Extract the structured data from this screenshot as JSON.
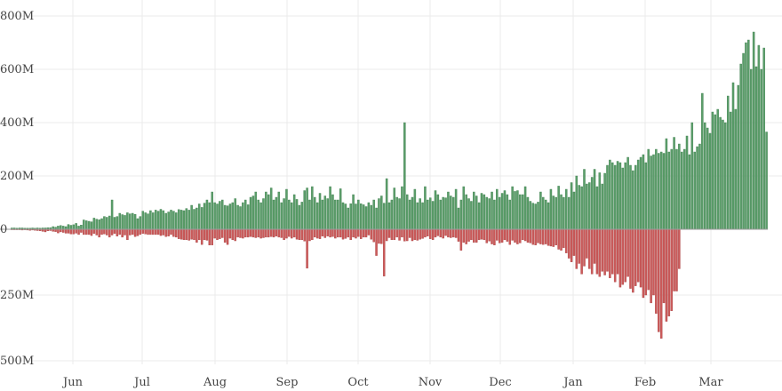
{
  "chart_data": {
    "type": "bar",
    "title": "",
    "xlabel": "",
    "ylabel": "",
    "grid": true,
    "legend": "none",
    "x_tick_labels": [
      "Jun",
      "Jul",
      "Aug",
      "Sep",
      "Oct",
      "Nov",
      "Dec",
      "Jan",
      "Feb",
      "Mar"
    ],
    "y_upper_tick_labels": [
      "0",
      "200M",
      "400M",
      "600M",
      "800M"
    ],
    "y_lower_tick_labels": [
      "250M",
      "500M"
    ],
    "upper_axis": {
      "min": 0,
      "max": 800,
      "unit": "M"
    },
    "lower_axis": {
      "min": 0,
      "max": 500,
      "unit": "M"
    },
    "colors": {
      "upper": "#5b9e6a",
      "lower": "#cc5a5a",
      "upper_edge": "#3f7f4f",
      "lower_edge": "#a94444"
    },
    "series": [
      {
        "name": "",
        "values": [
          5,
          5,
          4,
          5,
          5,
          4,
          4,
          4,
          5,
          4,
          5,
          4,
          5,
          5,
          6,
          6,
          10,
          8,
          12,
          14,
          12,
          10,
          18,
          15,
          17,
          22,
          12,
          16,
          35,
          32,
          30,
          28,
          42,
          38,
          36,
          40,
          48,
          45,
          50,
          110,
          45,
          48,
          60,
          55,
          52,
          62,
          58,
          60,
          56,
          40,
          48,
          68,
          62,
          58,
          70,
          62,
          72,
          68,
          75,
          70,
          60,
          65,
          72,
          68,
          62,
          74,
          72,
          70,
          78,
          72,
          90,
          75,
          80,
          95,
          82,
          98,
          110,
          100,
          140,
          100,
          95,
          105,
          110,
          90,
          88,
          95,
          100,
          115,
          90,
          85,
          100,
          110,
          92,
          120,
          125,
          140,
          110,
          100,
          115,
          140,
          130,
          155,
          110,
          120,
          140,
          100,
          115,
          150,
          110,
          100,
          130,
          112,
          90,
          102,
          145,
          155,
          110,
          160,
          120,
          100,
          135,
          110,
          125,
          115,
          160,
          130,
          110,
          110,
          152,
          100,
          95,
          80,
          96,
          130,
          95,
          110,
          96,
          92,
          85,
          100,
          90,
          110,
          80,
          115,
          125,
          98,
          190,
          100,
          110,
          155,
          120,
          115,
          160,
          400,
          130,
          110,
          120,
          150,
          100,
          115,
          100,
          160,
          110,
          118,
          105,
          145,
          130,
          110,
          120,
          118,
          140,
          125,
          120,
          150,
          80,
          110,
          160,
          130,
          115,
          105,
          140,
          125,
          100,
          135,
          130,
          120,
          115,
          140,
          110,
          150,
          120,
          135,
          145,
          130,
          110,
          160,
          142,
          145,
          130,
          130,
          160,
          120,
          105,
          98,
          95,
          102,
          140,
          120,
          110,
          100,
          150,
          125,
          120,
          162,
          130,
          120,
          150,
          120,
          175,
          140,
          200,
          165,
          160,
          225,
          170,
          175,
          195,
          225,
          160,
          212,
          170,
          210,
          240,
          260,
          250,
          240,
          255,
          250,
          230,
          250,
          270,
          240,
          220,
          240,
          260,
          270,
          280,
          250,
          300,
          275,
          280,
          300,
          285,
          290,
          285,
          340,
          290,
          300,
          345,
          300,
          320,
          290,
          300,
          350,
          280,
          400,
          290,
          310,
          320,
          510,
          400,
          380,
          360,
          440,
          430,
          450,
          420,
          410,
          400,
          500,
          440,
          550,
          450,
          540,
          620,
          660,
          700,
          710,
          600,
          740,
          610,
          690,
          600,
          680,
          365
        ]
      },
      {
        "name": "",
        "values": [
          2,
          2,
          2,
          2,
          3,
          2,
          3,
          4,
          3,
          4,
          5,
          6,
          8,
          10,
          6,
          5,
          8,
          9,
          14,
          10,
          12,
          15,
          15,
          18,
          18,
          15,
          20,
          12,
          20,
          20,
          20,
          24,
          16,
          22,
          30,
          20,
          18,
          22,
          30,
          22,
          16,
          26,
          20,
          30,
          22,
          40,
          22,
          20,
          28,
          25,
          20,
          16,
          18,
          20,
          20,
          20,
          20,
          20,
          24,
          22,
          28,
          26,
          20,
          28,
          30,
          36,
          38,
          40,
          40,
          42,
          38,
          40,
          50,
          40,
          58,
          40,
          42,
          60,
          60,
          34,
          40,
          36,
          32,
          50,
          58,
          34,
          40,
          44,
          30,
          32,
          34,
          30,
          30,
          28,
          30,
          32,
          30,
          34,
          32,
          30,
          30,
          28,
          30,
          26,
          30,
          32,
          40,
          34,
          28,
          34,
          30,
          38,
          40,
          40,
          45,
          148,
          44,
          40,
          30,
          34,
          36,
          26,
          32,
          26,
          30,
          28,
          34,
          30,
          30,
          38,
          35,
          30,
          40,
          30,
          34,
          28,
          36,
          30,
          30,
          22,
          38,
          48,
          100,
          54,
          55,
          178,
          44,
          32,
          40,
          40,
          30,
          42,
          30,
          45,
          44,
          32,
          44,
          40,
          42,
          38,
          35,
          30,
          26,
          36,
          40,
          30,
          25,
          30,
          34,
          24,
          30,
          32,
          30,
          32,
          46,
          80,
          50,
          56,
          46,
          40,
          50,
          50,
          40,
          38,
          40,
          52,
          45,
          56,
          60,
          42,
          52,
          50,
          40,
          46,
          58,
          42,
          50,
          56,
          52,
          40,
          44,
          50,
          52,
          58,
          60,
          52,
          56,
          58,
          56,
          62,
          64,
          66,
          60,
          76,
          80,
          70,
          90,
          110,
          124,
          100,
          150,
          130,
          170,
          140,
          110,
          150,
          170,
          130,
          170,
          180,
          160,
          174,
          160,
          185,
          170,
          200,
          170,
          220,
          210,
          200,
          180,
          225,
          240,
          215,
          200,
          220,
          260,
          250,
          230,
          280,
          250,
          320,
          390,
          415,
          280,
          350,
          330,
          310,
          235,
          235,
          150
        ]
      }
    ]
  }
}
